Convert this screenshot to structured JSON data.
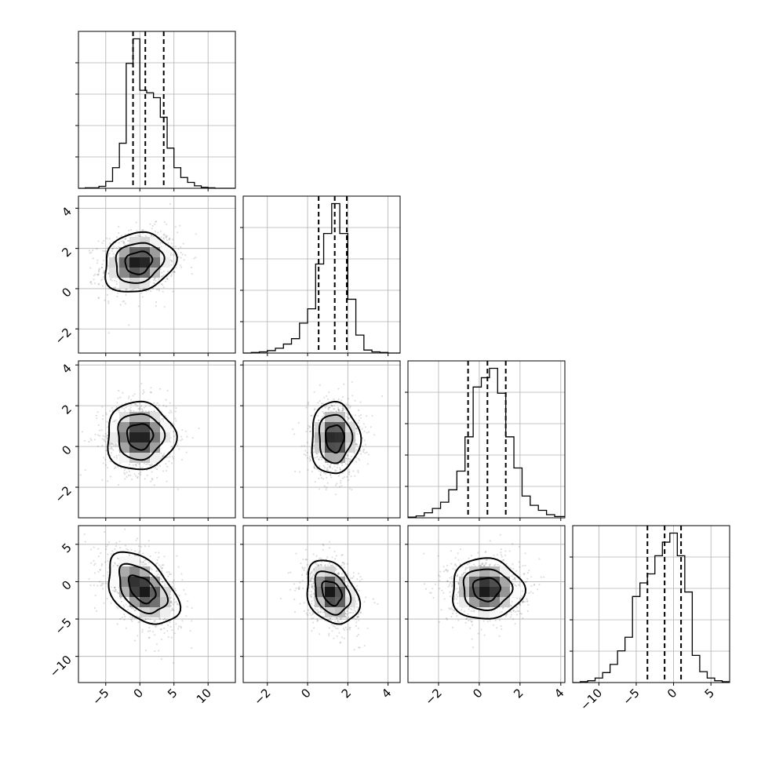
{
  "chart_data": {
    "type": "corner",
    "parameters": 4,
    "grid": true,
    "params": [
      {
        "index": 0,
        "range": [
          -9.0,
          14.0
        ],
        "ticks": [
          -5,
          0,
          5,
          10
        ],
        "tick_labels": [
          "−5",
          "0",
          "5",
          "10"
        ],
        "quantiles": [
          -1.0,
          0.8,
          3.5
        ],
        "hist_bins": [
          -9,
          -8,
          -7,
          -6,
          -5,
          -4,
          -3,
          -2,
          -1,
          0,
          1,
          2,
          3,
          4,
          5,
          6,
          7,
          8,
          9,
          10,
          11,
          12,
          13,
          14
        ],
        "hist_counts": [
          0,
          1,
          1,
          4,
          14,
          42,
          92,
          255,
          305,
          200,
          195,
          185,
          145,
          82,
          42,
          22,
          12,
          5,
          2,
          1,
          0,
          0,
          0
        ]
      },
      {
        "index": 1,
        "range": [
          -3.2,
          4.6
        ],
        "ticks": [
          -2,
          0,
          2,
          4
        ],
        "tick_labels": [
          "−2",
          "0",
          "2",
          "4"
        ],
        "quantiles": [
          0.55,
          1.35,
          1.95
        ],
        "hist_bins": [
          -3.2,
          -2.8,
          -2.4,
          -2.0,
          -1.6,
          -1.2,
          -0.8,
          -0.4,
          0.0,
          0.4,
          0.8,
          1.2,
          1.6,
          2.0,
          2.4,
          2.8,
          3.2,
          3.6,
          4.0,
          4.4,
          4.6
        ],
        "hist_counts": [
          0,
          1,
          2,
          4,
          8,
          15,
          24,
          50,
          74,
          149,
          200,
          250,
          200,
          90,
          30,
          5,
          2,
          1,
          0,
          0
        ]
      },
      {
        "index": 2,
        "range": [
          -3.5,
          4.2
        ],
        "ticks": [
          -2,
          0,
          2,
          4
        ],
        "tick_labels": [
          "−2",
          "0",
          "2",
          "4"
        ],
        "quantiles": [
          -0.55,
          0.4,
          1.3
        ],
        "hist_bins": [
          -3.5,
          -3.1,
          -2.7,
          -2.3,
          -1.9,
          -1.5,
          -1.1,
          -0.7,
          -0.3,
          0.1,
          0.5,
          0.9,
          1.3,
          1.7,
          2.1,
          2.5,
          2.9,
          3.3,
          3.7,
          4.2
        ],
        "hist_counts": [
          1,
          3,
          8,
          15,
          25,
          45,
          75,
          130,
          210,
          225,
          240,
          200,
          130,
          80,
          35,
          20,
          12,
          5,
          2
        ]
      },
      {
        "index": 3,
        "range": [
          -13.5,
          7.5
        ],
        "ticks": [
          -10,
          -5,
          0,
          5
        ],
        "tick_labels": [
          "−10",
          "−5",
          "0",
          "5"
        ],
        "quantiles": [
          -3.5,
          -1.2,
          1.0
        ],
        "hist_bins": [
          -13.5,
          -12.5,
          -11.5,
          -10.5,
          -9.5,
          -8.5,
          -7.5,
          -6.5,
          -5.5,
          -4.5,
          -3.5,
          -2.5,
          -1.5,
          -0.5,
          0.5,
          1.5,
          2.5,
          3.5,
          4.5,
          5.5,
          6.5,
          7.5
        ],
        "hist_counts": [
          0,
          1,
          2,
          5,
          11,
          20,
          35,
          50,
          95,
          110,
          120,
          140,
          155,
          165,
          140,
          100,
          30,
          12,
          5,
          2,
          1
        ]
      }
    ],
    "pairs": [
      {
        "x": 0,
        "y": 1,
        "center": [
          -0.2,
          1.3
        ],
        "sigma": [
          2.8,
          0.8
        ],
        "rho": 0.15,
        "peaks": [
          [
            -0.5,
            1.2
          ],
          [
            2.5,
            1.5
          ]
        ]
      },
      {
        "x": 0,
        "y": 2,
        "center": [
          0.0,
          0.5
        ],
        "sigma": [
          2.7,
          0.9
        ],
        "rho": 0.0,
        "peaks": [
          [
            -0.5,
            0.4
          ]
        ]
      },
      {
        "x": 1,
        "y": 2,
        "center": [
          1.35,
          0.4
        ],
        "sigma": [
          0.65,
          0.95
        ],
        "rho": 0.0,
        "peaks": [
          [
            1.4,
            0.5
          ]
        ]
      },
      {
        "x": 0,
        "y": 3,
        "center": [
          0.3,
          -1.0
        ],
        "sigma": [
          2.8,
          2.6
        ],
        "rho": -0.45,
        "peaks": [
          [
            -0.5,
            0.0
          ],
          [
            2.5,
            -2.0
          ]
        ]
      },
      {
        "x": 1,
        "y": 3,
        "center": [
          1.2,
          -1.5
        ],
        "sigma": [
          0.7,
          2.3
        ],
        "rho": -0.3,
        "peaks": [
          [
            1.4,
            -1.5
          ]
        ]
      },
      {
        "x": 2,
        "y": 3,
        "center": [
          0.35,
          -1.0
        ],
        "sigma": [
          0.95,
          2.2
        ],
        "rho": 0.0,
        "peaks": [
          [
            0.4,
            -1.0
          ]
        ]
      }
    ]
  }
}
